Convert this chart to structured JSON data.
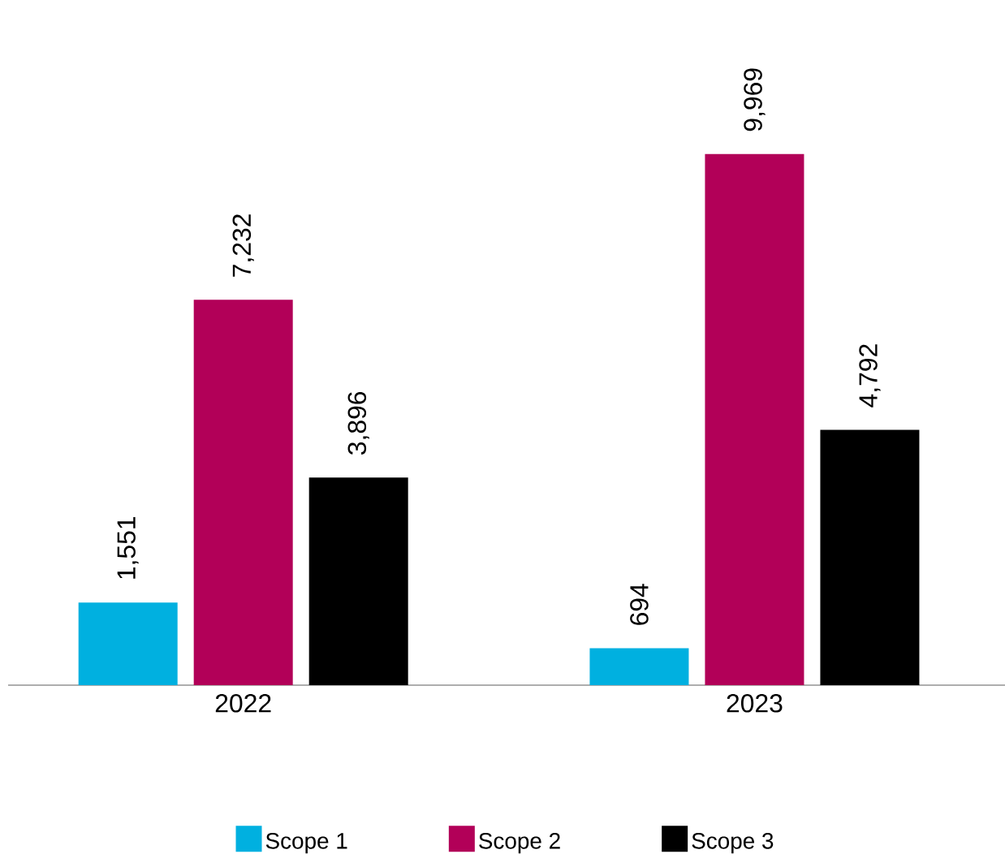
{
  "chart_data": {
    "type": "bar",
    "categories": [
      "2022",
      "2023"
    ],
    "series": [
      {
        "name": "Scope 1",
        "color": "#00b0e0",
        "values": [
          1551,
          694
        ],
        "value_labels": [
          "1,551",
          "694"
        ]
      },
      {
        "name": "Scope 2",
        "color": "#b20058",
        "values": [
          7232,
          9969
        ],
        "value_labels": [
          "7,232",
          "9,969"
        ]
      },
      {
        "name": "Scope 3",
        "color": "#000000",
        "values": [
          3896,
          4792
        ],
        "value_labels": [
          "3,896",
          "4,792"
        ]
      }
    ],
    "legend": "bottom"
  }
}
